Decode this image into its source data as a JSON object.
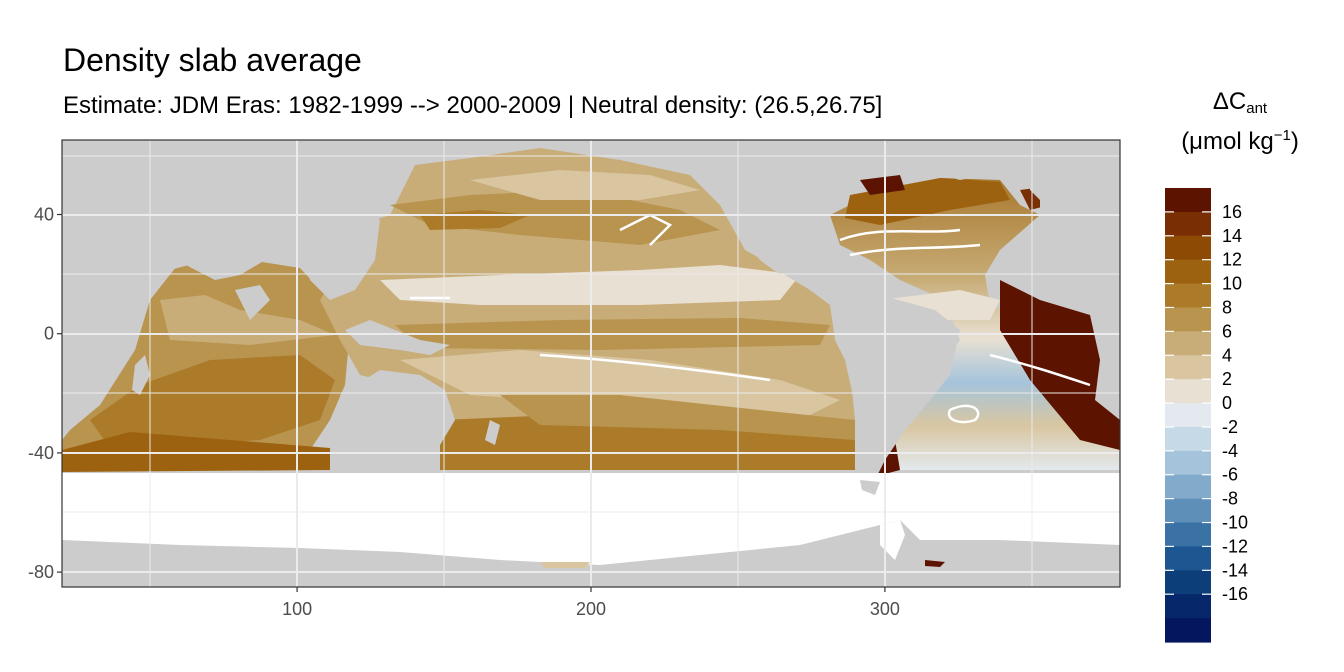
{
  "chart_data": {
    "type": "heatmap",
    "title": "Density slab average",
    "subtitle": "Estimate: JDM Eras: 1982-1999 --> 2000-2009 | Neutral density: (26.5,26.75]",
    "legend": {
      "title_symbol": "ΔC",
      "title_subscript": "ant",
      "unit_prefix": "(μmol kg",
      "unit_sup": "−1",
      "unit_suffix": ")",
      "placement": "right",
      "breaks": [
        16,
        14,
        12,
        10,
        8,
        6,
        4,
        2,
        0,
        -2,
        -4,
        -6,
        -8,
        -10,
        -12,
        -14,
        -16
      ],
      "colors": [
        "#5c1300",
        "#7a2e04",
        "#8c4a05",
        "#9c6210",
        "#ab7b2a",
        "#b9944f",
        "#c8ad78",
        "#d9c6a1",
        "#e8e0d2",
        "#e3e9ee",
        "#c6d9e6",
        "#a5c4db",
        "#82abcb",
        "#5d8fb9",
        "#3a72a6",
        "#1d5690",
        "#0c3e7a",
        "#06286a",
        "#03165e"
      ]
    },
    "x_axis": {
      "range": [
        20,
        380
      ],
      "ticks": [
        100,
        200,
        300
      ],
      "labels": [
        "100",
        "200",
        "300"
      ]
    },
    "y_axis": {
      "range": [
        -85,
        65
      ],
      "ticks": [
        40,
        0,
        -40,
        -80
      ],
      "labels": [
        "40",
        "0",
        "-40",
        "-80"
      ]
    },
    "grid": true,
    "land_color": "#cccccc",
    "no_data_color": "#ffffff"
  }
}
